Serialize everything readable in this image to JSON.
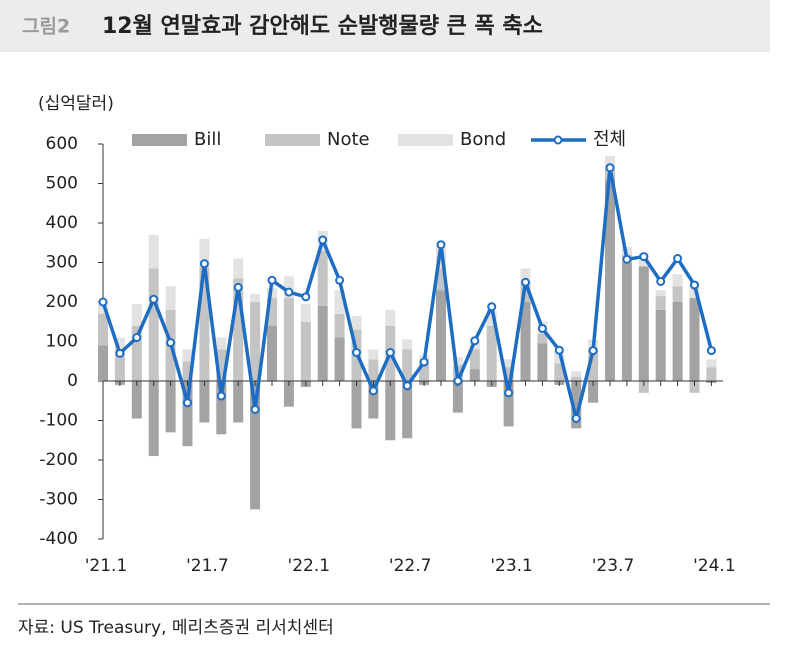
{
  "chart_data": {
    "type": "bar",
    "figure_label": "그림2",
    "title": "12월 연말효과 감안해도 순발행물량 큰 폭 축소",
    "y_label": "(십억달러)",
    "source": "자료: US Treasury, 메리츠증권 리서치센터",
    "categories": [
      "'21.1",
      null,
      null,
      null,
      null,
      null,
      "'21.7",
      null,
      null,
      null,
      null,
      null,
      "'22.1",
      null,
      null,
      null,
      null,
      null,
      "'22.7",
      null,
      null,
      null,
      null,
      null,
      "'23.1",
      null,
      null,
      null,
      null,
      null,
      "'23.7",
      null,
      null,
      null,
      null,
      null,
      "'24.1"
    ],
    "ylim": [
      -400,
      600
    ],
    "yticks": [
      -400,
      -300,
      -200,
      -100,
      0,
      100,
      200,
      300,
      400,
      500,
      600
    ],
    "series": [
      {
        "name": "Bill",
        "type": "bar",
        "color": "#a3a3a3",
        "values": [
          90,
          -10,
          -95,
          -190,
          -130,
          -165,
          -105,
          -135,
          -105,
          -325,
          140,
          -65,
          -15,
          190,
          110,
          -120,
          -95,
          -150,
          -145,
          -10,
          230,
          -80,
          30,
          -15,
          -115,
          200,
          95,
          -10,
          -120,
          -55,
          510,
          300,
          290,
          180,
          200,
          210,
          -5
        ]
      },
      {
        "name": "Note",
        "type": "bar",
        "color": "#c4c4c4",
        "values": [
          80,
          80,
          140,
          285,
          180,
          50,
          290,
          80,
          260,
          200,
          70,
          210,
          150,
          140,
          60,
          130,
          55,
          140,
          80,
          45,
          55,
          40,
          50,
          140,
          35,
          50,
          25,
          45,
          10,
          80,
          30,
          20,
          -30,
          35,
          40,
          -30,
          35
        ]
      },
      {
        "name": "Bond",
        "type": "bar",
        "color": "#e2e2e2",
        "values": [
          30,
          30,
          55,
          85,
          60,
          30,
          70,
          30,
          50,
          20,
          25,
          55,
          45,
          50,
          60,
          35,
          25,
          40,
          25,
          20,
          55,
          20,
          20,
          40,
          20,
          35,
          30,
          30,
          15,
          25,
          30,
          20,
          35,
          15,
          30,
          40,
          20
        ]
      },
      {
        "name": "전체",
        "type": "line",
        "color": "#1f6dc2",
        "values": [
          200,
          70,
          110,
          207,
          97,
          -55,
          297,
          -38,
          237,
          -72,
          255,
          225,
          213,
          357,
          255,
          72,
          -25,
          72,
          -12,
          48,
          345,
          0,
          102,
          188,
          -30,
          250,
          133,
          78,
          -95,
          77,
          540,
          308,
          315,
          252,
          310,
          243,
          77
        ]
      }
    ]
  }
}
